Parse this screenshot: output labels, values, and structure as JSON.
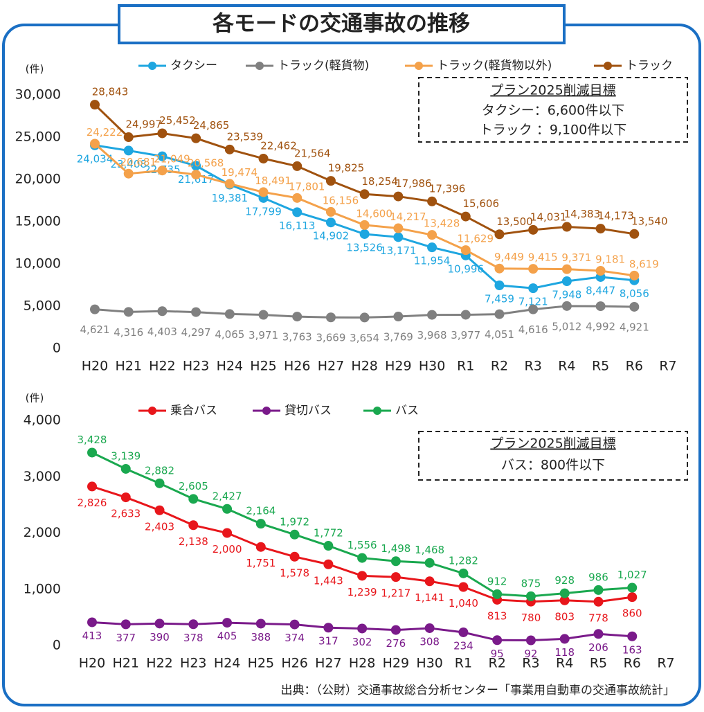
{
  "title": "各モードの交通事故の推移",
  "source": "出典：（公財）交通事故総合分析センター「事業用自動車の交通事故統計」",
  "chart_data": [
    {
      "type": "line",
      "unit_label": "(件)",
      "categories": [
        "H20",
        "H21",
        "H22",
        "H23",
        "H24",
        "H25",
        "H26",
        "H27",
        "H28",
        "H29",
        "H30",
        "R1",
        "R2",
        "R3",
        "R4",
        "R5",
        "R6",
        "R7"
      ],
      "ylim": [
        0,
        30000
      ],
      "yticks": [
        0,
        {
          "value": 5000,
          "label": "5,000"
        },
        {
          "value": 10000,
          "label": "10,000"
        },
        {
          "value": 15000,
          "label": "15,000"
        },
        {
          "value": 20000,
          "label": "20,000"
        },
        {
          "value": 25000,
          "label": "25,000"
        },
        {
          "value": 30000,
          "label": "30,000"
        }
      ],
      "grid": false,
      "target_box": {
        "title": "プラン2025削減目標",
        "lines": [
          "タクシー：6,600件以下",
          "トラック ：9,100件以下"
        ]
      },
      "series": [
        {
          "name": "タクシー",
          "color": "#1ea6e0",
          "values": [
            24034,
            23408,
            22735,
            21617,
            19381,
            17799,
            16113,
            14902,
            13526,
            13171,
            11954,
            10996,
            7459,
            7121,
            7948,
            8447,
            8056,
            null
          ],
          "value_labels": [
            "24,034",
            "23,408",
            "22,735",
            "21,617",
            "19,381",
            "17,799",
            "16,113",
            "14,902",
            "13,526",
            "13,171",
            "11,954",
            "10,996",
            "7,459",
            "7,121",
            "7,948",
            "8,447",
            "8,056",
            null
          ]
        },
        {
          "name": "トラック(軽貨物)",
          "color": "#808080",
          "values": [
            4621,
            4316,
            4403,
            4297,
            4065,
            3971,
            3763,
            3669,
            3654,
            3769,
            3968,
            3977,
            4051,
            4616,
            5012,
            4992,
            4921,
            null
          ],
          "value_labels": [
            "4,621",
            "4,316",
            "4,403",
            "4,297",
            "4,065",
            "3,971",
            "3,763",
            "3,669",
            "3,654",
            "3,769",
            "3,968",
            "3,977",
            "4,051",
            "4,616",
            "5,012",
            "4,992",
            "4,921",
            null
          ]
        },
        {
          "name": "トラック(軽貨物以外)",
          "color": "#f4a14a",
          "values": [
            24222,
            20681,
            21049,
            20568,
            19474,
            18491,
            17801,
            16156,
            14600,
            14217,
            13428,
            11629,
            9449,
            9415,
            9371,
            9181,
            8619,
            null
          ],
          "value_labels": [
            "24,222",
            "20,681",
            "21,049",
            "20,568",
            "19,474",
            "18,491",
            "17,801",
            "16,156",
            "14,600",
            "14,217",
            "13,428",
            "11,629",
            "9,449",
            "9,415",
            "9,371",
            "9,181",
            "8,619",
            null
          ]
        },
        {
          "name": "トラック",
          "color": "#a0520f",
          "values": [
            28843,
            24997,
            25452,
            24865,
            23539,
            22462,
            21564,
            19825,
            18254,
            17986,
            17396,
            15606,
            13500,
            14031,
            14383,
            14173,
            13540,
            null
          ],
          "value_labels": [
            "28,843",
            "24,997",
            "25,452",
            "24,865",
            "23,539",
            "22,462",
            "21,564",
            "19,825",
            "18,254",
            "17,986",
            "17,396",
            "15,606",
            "13,500",
            "14,031",
            "14,383",
            "14,173",
            "13,540",
            null
          ]
        }
      ]
    },
    {
      "type": "line",
      "unit_label": "(件)",
      "categories": [
        "H20",
        "H21",
        "H22",
        "H23",
        "H24",
        "H25",
        "H26",
        "H27",
        "H28",
        "H29",
        "H30",
        "R1",
        "R2",
        "R3",
        "R4",
        "R5",
        "R6",
        "R7"
      ],
      "ylim": [
        0,
        4000
      ],
      "yticks": [
        0,
        {
          "value": 1000,
          "label": "1,000"
        },
        {
          "value": 2000,
          "label": "2,000"
        },
        {
          "value": 3000,
          "label": "3,000"
        },
        {
          "value": 4000,
          "label": "4,000"
        }
      ],
      "grid": false,
      "target_box": {
        "title": "プラン2025削減目標",
        "lines": [
          "バス：800件以下"
        ]
      },
      "series": [
        {
          "name": "乗合バス",
          "color": "#e8161b",
          "values": [
            2826,
            2633,
            2403,
            2138,
            2000,
            1751,
            1578,
            1443,
            1239,
            1217,
            1141,
            1040,
            813,
            780,
            803,
            778,
            860,
            null
          ],
          "value_labels": [
            "2,826",
            "2,633",
            "2,403",
            "2,138",
            "2,000",
            "1,751",
            "1,578",
            "1,443",
            "1,239",
            "1,217",
            "1,141",
            "1,040",
            "813",
            "780",
            "803",
            "778",
            "860",
            null
          ]
        },
        {
          "name": "貸切バス",
          "color": "#7a1a8a",
          "values": [
            413,
            377,
            390,
            378,
            405,
            388,
            374,
            317,
            302,
            276,
            308,
            234,
            95,
            92,
            118,
            206,
            163,
            null
          ],
          "value_labels": [
            "413",
            "377",
            "390",
            "378",
            "405",
            "388",
            "374",
            "317",
            "302",
            "276",
            "308",
            "234",
            "95",
            "92",
            "118",
            "206",
            "163",
            null
          ]
        },
        {
          "name": "バス",
          "color": "#1aa84f",
          "values": [
            3428,
            3139,
            2882,
            2605,
            2427,
            2164,
            1972,
            1772,
            1556,
            1498,
            1468,
            1282,
            912,
            875,
            928,
            986,
            1027,
            null
          ],
          "value_labels": [
            "3,428",
            "3,139",
            "2,882",
            "2,605",
            "2,427",
            "2,164",
            "1,972",
            "1,772",
            "1,556",
            "1,498",
            "1,468",
            "1,282",
            "912",
            "875",
            "928",
            "986",
            "1,027",
            null
          ]
        }
      ]
    }
  ]
}
